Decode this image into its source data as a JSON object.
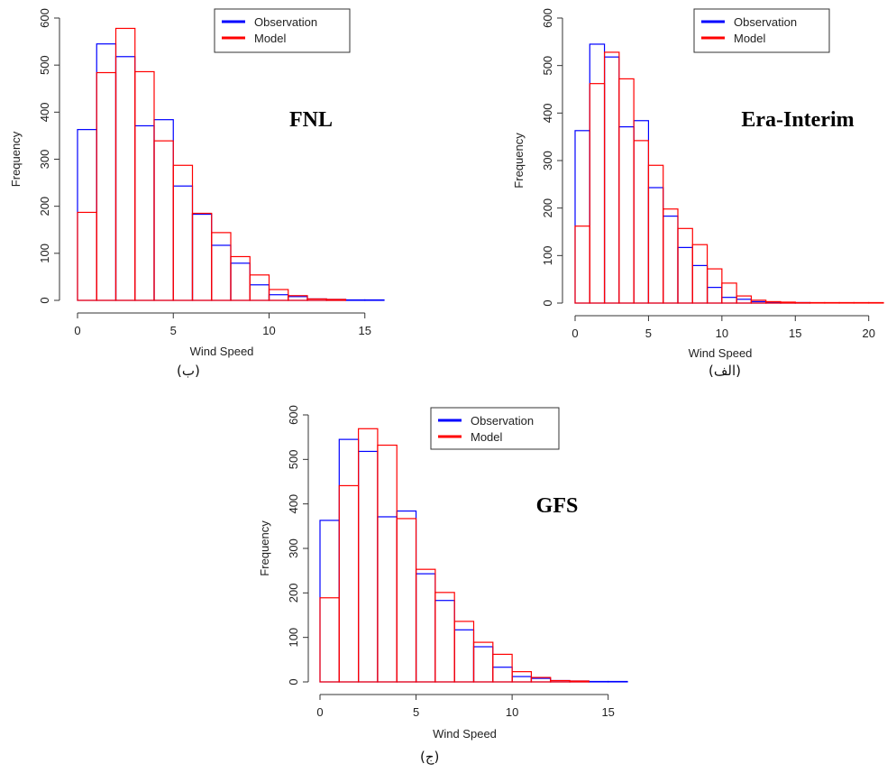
{
  "chart_data": [
    {
      "type": "bar",
      "panel_name": "FNL",
      "caption": "(ب)",
      "xlabel": "Wind Speed",
      "ylabel": "Frequency",
      "xlim": [
        0,
        16
      ],
      "ylim": [
        0,
        600
      ],
      "xticks": [
        0,
        5,
        10,
        15
      ],
      "yticks": [
        0,
        100,
        200,
        300,
        400,
        500,
        600
      ],
      "bin_edges": [
        0,
        1,
        2,
        3,
        4,
        5,
        6,
        7,
        8,
        9,
        10,
        11,
        12,
        13,
        14,
        15,
        16
      ],
      "legend_position": "top-center",
      "series": [
        {
          "name": "Observation",
          "color": "#0000ff",
          "values": [
            363,
            545,
            518,
            371,
            384,
            243,
            183,
            117,
            79,
            33,
            12,
            8,
            3,
            2,
            1,
            1
          ]
        },
        {
          "name": "Model",
          "color": "#ff0000",
          "values": [
            187,
            484,
            578,
            486,
            339,
            287,
            185,
            144,
            93,
            54,
            23,
            10,
            3,
            2,
            0,
            0
          ]
        }
      ]
    },
    {
      "type": "bar",
      "panel_name": "Era-Interim",
      "caption": "(الف)",
      "xlabel": "Wind Speed",
      "ylabel": "Frequency",
      "xlim": [
        0,
        21
      ],
      "ylim": [
        0,
        600
      ],
      "xticks": [
        0,
        5,
        10,
        15,
        20
      ],
      "yticks": [
        0,
        100,
        200,
        300,
        400,
        500,
        600
      ],
      "bin_edges": [
        0,
        1,
        2,
        3,
        4,
        5,
        6,
        7,
        8,
        9,
        10,
        11,
        12,
        13,
        14,
        15,
        16,
        17,
        18,
        19,
        20,
        21
      ],
      "legend_position": "top-center",
      "series": [
        {
          "name": "Observation",
          "color": "#0000ff",
          "values": [
            363,
            545,
            518,
            371,
            384,
            243,
            183,
            117,
            79,
            33,
            12,
            8,
            3,
            2,
            1,
            1,
            0,
            0,
            0,
            0,
            0
          ]
        },
        {
          "name": "Model",
          "color": "#ff0000",
          "values": [
            162,
            462,
            528,
            472,
            342,
            290,
            198,
            157,
            123,
            72,
            42,
            15,
            6,
            3,
            2,
            1,
            1,
            1,
            1,
            1,
            1
          ]
        }
      ]
    },
    {
      "type": "bar",
      "panel_name": "GFS",
      "caption": "(ج)",
      "xlabel": "Wind Speed",
      "ylabel": "Frequency",
      "xlim": [
        0,
        16
      ],
      "ylim": [
        0,
        600
      ],
      "xticks": [
        0,
        5,
        10,
        15
      ],
      "yticks": [
        0,
        100,
        200,
        300,
        400,
        500,
        600
      ],
      "bin_edges": [
        0,
        1,
        2,
        3,
        4,
        5,
        6,
        7,
        8,
        9,
        10,
        11,
        12,
        13,
        14,
        15,
        16
      ],
      "legend_position": "top-center",
      "series": [
        {
          "name": "Observation",
          "color": "#0000ff",
          "values": [
            363,
            545,
            518,
            371,
            384,
            243,
            183,
            117,
            79,
            33,
            12,
            8,
            3,
            2,
            1,
            1
          ]
        },
        {
          "name": "Model",
          "color": "#ff0000",
          "values": [
            189,
            441,
            569,
            532,
            367,
            253,
            201,
            136,
            89,
            62,
            23,
            10,
            3,
            2,
            0,
            0
          ]
        }
      ]
    }
  ]
}
